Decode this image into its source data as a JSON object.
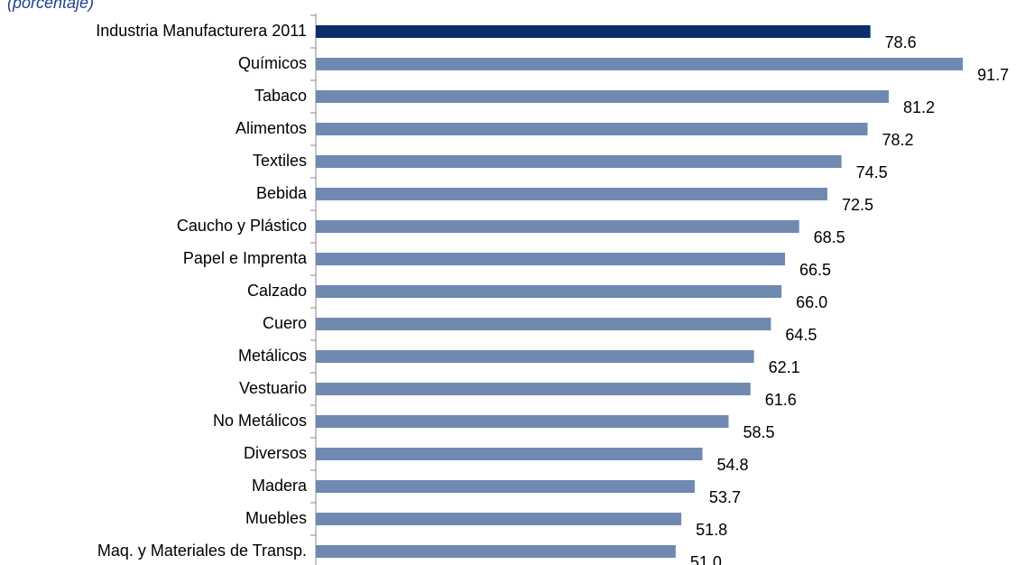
{
  "chart_data": {
    "type": "barh",
    "subtitle": "(porcentaje)",
    "categories": [
      "Industria Manufacturera 2011",
      "Químicos",
      "Tabaco",
      "Alimentos",
      "Textiles",
      "Bebida",
      "Caucho y Plástico",
      "Papel e Imprenta",
      "Calzado",
      "Cuero",
      "Metálicos",
      "Vestuario",
      "No Metálicos",
      "Diversos",
      "Madera",
      "Muebles",
      "Maq. y Materiales de Transp."
    ],
    "values": [
      78.6,
      91.7,
      81.2,
      78.2,
      74.5,
      72.5,
      68.5,
      66.5,
      66.0,
      64.5,
      62.1,
      61.6,
      58.5,
      54.8,
      53.7,
      51.8,
      51.0
    ],
    "value_labels": [
      "78.6",
      "91.7",
      "81.2",
      "78.2",
      "74.5",
      "72.5",
      "68.5",
      "66.5",
      "66.0",
      "64.5",
      "62.1",
      "61.6",
      "58.5",
      "54.8",
      "53.7",
      "51.8",
      "51.0"
    ],
    "colors": [
      "#0b2e6b",
      "#7089b1",
      "#7089b1",
      "#7089b1",
      "#7089b1",
      "#7089b1",
      "#7089b1",
      "#7089b1",
      "#7089b1",
      "#7089b1",
      "#7089b1",
      "#7089b1",
      "#7089b1",
      "#7089b1",
      "#7089b1",
      "#7089b1",
      "#7089b1"
    ]
  }
}
